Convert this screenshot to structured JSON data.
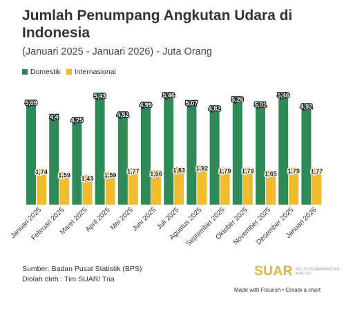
{
  "header": {
    "title": "Jumlah Penumpang Angkutan Udara di Indonesia",
    "subtitle": "(Januari 2025 - Januari 2026) - Juta Orang"
  },
  "colors": {
    "domestik": "#2e8b57",
    "internasional": "#f0bc2e",
    "logo": "#e0b43a"
  },
  "chart_data": {
    "type": "bar",
    "categories": [
      "Januari 2025",
      "Februari 2025",
      "Maret 2025",
      "April 2025",
      "Mei 2025",
      "Juni 2025",
      "Juli 2025",
      "Agustus 2025",
      "September 2025",
      "Oktober 2025",
      "November 2025",
      "Desember 2025",
      "Januari 2026"
    ],
    "series": [
      {
        "name": "Domestik",
        "values": [
          5.09,
          4.4,
          4.25,
          5.43,
          4.52,
          4.99,
          5.46,
          5.07,
          4.82,
          5.26,
          5.01,
          5.46,
          4.92
        ],
        "labels": [
          "5,09",
          "4,4",
          "4,25",
          "5,43",
          "4,52",
          "4,99",
          "5,46",
          "5,07",
          "4,82",
          "5,26",
          "5,01",
          "5,46",
          "4,92"
        ]
      },
      {
        "name": "Internasional",
        "values": [
          1.74,
          1.59,
          1.43,
          1.59,
          1.77,
          1.66,
          1.83,
          1.92,
          1.79,
          1.79,
          1.65,
          1.79,
          1.77
        ],
        "labels": [
          "1,74",
          "1,59",
          "1,43",
          "1,59",
          "1,77",
          "1,66",
          "1,83",
          "1,92",
          "1,79",
          "1,79",
          "1,65",
          "1,79",
          "1,77"
        ]
      }
    ],
    "title": "Jumlah Penumpang Angkutan Udara di Indonesia",
    "subtitle": "(Januari 2025 - Januari 2026) - Juta Orang",
    "legend_position": "top-left",
    "grid": false
  },
  "footer": {
    "source": "Sumber: Badan Pusat Statistik (BPS)",
    "processed": "Diolah oleh : Tim SUAR/ Tria",
    "logo": "SUAR",
    "logo_tagline": "SOLUSI PENAWARAN DAN ANALISIS",
    "flourish": "Made with Flourish • Create a chart"
  }
}
